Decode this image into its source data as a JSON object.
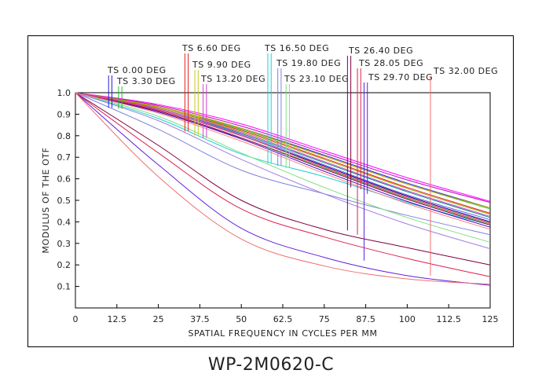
{
  "chart_data": {
    "type": "line",
    "title": "WP-2M0620-C",
    "xlabel": "SPATIAL FREQUENCY IN CYCLES PER MM",
    "ylabel": "MODULUS OF THE OTF",
    "xlim": [
      0,
      125
    ],
    "ylim": [
      0,
      1.0
    ],
    "x_ticks": [
      "0",
      "12.5",
      "25",
      "37.5",
      "50",
      "62.5",
      "75",
      "87.5",
      "100",
      "112.5",
      "125"
    ],
    "y_ticks": [
      "0.1",
      "0.2",
      "0.3",
      "0.4",
      "0.5",
      "0.6",
      "0.7",
      "0.8",
      "0.9",
      "1.0"
    ],
    "grid": false,
    "fields": [
      {
        "label": "TS 0.00 DEG",
        "color": "#2323e0",
        "marks": [
          {
            "x": 10.0,
            "y": 0.93
          },
          {
            "x": 11.0,
            "y": 0.93
          }
        ]
      },
      {
        "label": "TS 3.30 DEG",
        "color": "#20c020",
        "marks": [
          {
            "x": 13.0,
            "y": 0.925
          },
          {
            "x": 14.0,
            "y": 0.925
          }
        ]
      },
      {
        "label": "TS 6.60 DEG",
        "color": "#e02020",
        "marks": [
          {
            "x": 33.0,
            "y": 0.82
          },
          {
            "x": 34.0,
            "y": 0.82
          }
        ]
      },
      {
        "label": "TS 9.90 DEG",
        "color": "#c8c820",
        "marks": [
          {
            "x": 36.0,
            "y": 0.8
          },
          {
            "x": 37.0,
            "y": 0.8
          }
        ]
      },
      {
        "label": "TS 13.20 DEG",
        "color": "#d040d0",
        "marks": [
          {
            "x": 38.5,
            "y": 0.79
          },
          {
            "x": 39.5,
            "y": 0.79
          }
        ]
      },
      {
        "label": "TS 16.50 DEG",
        "color": "#20d0d0",
        "marks": [
          {
            "x": 58.0,
            "y": 0.67
          },
          {
            "x": 59.0,
            "y": 0.67
          }
        ]
      },
      {
        "label": "TS 19.80 DEG",
        "color": "#8080e0",
        "marks": [
          {
            "x": 61.0,
            "y": 0.66
          },
          {
            "x": 62.0,
            "y": 0.66
          }
        ]
      },
      {
        "label": "TS 23.10 DEG",
        "color": "#80e080",
        "marks": [
          {
            "x": 63.5,
            "y": 0.65
          },
          {
            "x": 64.5,
            "y": 0.65
          }
        ]
      },
      {
        "label": "TS 26.40 DEG",
        "color": "#800040",
        "marks": [
          {
            "x": 82.0,
            "y": 0.36
          },
          {
            "x": 83.0,
            "y": 0.56
          }
        ]
      },
      {
        "label": "TS 28.05 DEG",
        "color": "#e02050",
        "marks": [
          {
            "x": 85.0,
            "y": 0.34
          },
          {
            "x": 86.0,
            "y": 0.55
          }
        ]
      },
      {
        "label": "TS 29.70 DEG",
        "color": "#6020e0",
        "marks": [
          {
            "x": 87.0,
            "y": 0.22
          },
          {
            "x": 88.0,
            "y": 0.53
          }
        ]
      },
      {
        "label": "TS 32.00 DEG",
        "color": "#f07070",
        "marks": [
          {
            "x": 107.0,
            "y": 0.15
          }
        ]
      }
    ],
    "series": [
      {
        "name": "TS 0.00 DEG S",
        "color": "#2323e0",
        "values": [
          [
            0,
            1.0
          ],
          [
            25,
            0.935
          ],
          [
            50,
            0.835
          ],
          [
            75,
            0.71
          ],
          [
            100,
            0.58
          ],
          [
            125,
            0.465
          ]
        ]
      },
      {
        "name": "TS 0.00 DEG T",
        "color": "#c000c0",
        "values": [
          [
            0,
            1.0
          ],
          [
            25,
            0.94
          ],
          [
            50,
            0.845
          ],
          [
            75,
            0.72
          ],
          [
            100,
            0.595
          ],
          [
            125,
            0.49
          ]
        ]
      },
      {
        "name": "TS 3.30 DEG S",
        "color": "#20c020",
        "values": [
          [
            0,
            1.0
          ],
          [
            25,
            0.935
          ],
          [
            50,
            0.83
          ],
          [
            75,
            0.705
          ],
          [
            100,
            0.575
          ],
          [
            125,
            0.46
          ]
        ]
      },
      {
        "name": "TS 3.30 DEG T",
        "color": "#ff00ff",
        "values": [
          [
            0,
            1.0
          ],
          [
            25,
            0.945
          ],
          [
            50,
            0.855
          ],
          [
            75,
            0.73
          ],
          [
            100,
            0.605
          ],
          [
            125,
            0.495
          ]
        ]
      },
      {
        "name": "TS 6.60 DEG S",
        "color": "#e02020",
        "values": [
          [
            0,
            1.0
          ],
          [
            25,
            0.93
          ],
          [
            50,
            0.825
          ],
          [
            75,
            0.695
          ],
          [
            100,
            0.56
          ],
          [
            125,
            0.44
          ]
        ]
      },
      {
        "name": "TS 6.60 DEG T",
        "color": "#d0a000",
        "values": [
          [
            0,
            1.0
          ],
          [
            25,
            0.935
          ],
          [
            50,
            0.835
          ],
          [
            75,
            0.705
          ],
          [
            100,
            0.575
          ],
          [
            125,
            0.465
          ]
        ]
      },
      {
        "name": "TS 9.90 DEG S",
        "color": "#a0a000",
        "values": [
          [
            0,
            1.0
          ],
          [
            25,
            0.93
          ],
          [
            50,
            0.82
          ],
          [
            75,
            0.69
          ],
          [
            100,
            0.555
          ],
          [
            125,
            0.435
          ]
        ]
      },
      {
        "name": "TS 9.90 DEG T",
        "color": "#008080",
        "values": [
          [
            0,
            1.0
          ],
          [
            25,
            0.925
          ],
          [
            50,
            0.81
          ],
          [
            75,
            0.675
          ],
          [
            100,
            0.54
          ],
          [
            125,
            0.42
          ]
        ]
      },
      {
        "name": "TS 13.20 DEG S",
        "color": "#d040d0",
        "values": [
          [
            0,
            1.0
          ],
          [
            25,
            0.925
          ],
          [
            50,
            0.815
          ],
          [
            75,
            0.68
          ],
          [
            100,
            0.545
          ],
          [
            125,
            0.425
          ]
        ]
      },
      {
        "name": "TS 13.20 DEG T",
        "color": "#0000a0",
        "values": [
          [
            0,
            1.0
          ],
          [
            25,
            0.92
          ],
          [
            50,
            0.8
          ],
          [
            75,
            0.66
          ],
          [
            100,
            0.52
          ],
          [
            125,
            0.4
          ]
        ]
      },
      {
        "name": "TS 16.50 DEG S",
        "color": "#20d0d0",
        "values": [
          [
            0,
            1.0
          ],
          [
            25,
            0.88
          ],
          [
            50,
            0.715
          ],
          [
            75,
            0.61
          ],
          [
            100,
            0.49
          ],
          [
            125,
            0.385
          ]
        ]
      },
      {
        "name": "TS 16.50 DEG T",
        "color": "#6060e0",
        "values": [
          [
            0,
            1.0
          ],
          [
            25,
            0.92
          ],
          [
            50,
            0.805
          ],
          [
            75,
            0.665
          ],
          [
            100,
            0.525
          ],
          [
            125,
            0.41
          ]
        ]
      },
      {
        "name": "TS 19.80 DEG S",
        "color": "#8080e0",
        "values": [
          [
            0,
            1.0
          ],
          [
            25,
            0.83
          ],
          [
            50,
            0.64
          ],
          [
            75,
            0.53
          ],
          [
            100,
            0.43
          ],
          [
            125,
            0.34
          ]
        ]
      },
      {
        "name": "TS 19.80 DEG T",
        "color": "#40a040",
        "values": [
          [
            0,
            1.0
          ],
          [
            25,
            0.915
          ],
          [
            50,
            0.79
          ],
          [
            75,
            0.65
          ],
          [
            100,
            0.51
          ],
          [
            125,
            0.39
          ]
        ]
      },
      {
        "name": "TS 23.10 DEG S",
        "color": "#80e080",
        "values": [
          [
            0,
            1.0
          ],
          [
            25,
            0.89
          ],
          [
            50,
            0.72
          ],
          [
            75,
            0.56
          ],
          [
            100,
            0.42
          ],
          [
            125,
            0.305
          ]
        ]
      },
      {
        "name": "TS 23.10 DEG T",
        "color": "#a080e0",
        "values": [
          [
            0,
            1.0
          ],
          [
            25,
            0.87
          ],
          [
            50,
            0.69
          ],
          [
            75,
            0.53
          ],
          [
            100,
            0.39
          ],
          [
            125,
            0.275
          ]
        ]
      },
      {
        "name": "TS 26.40 DEG S",
        "color": "#800040",
        "values": [
          [
            0,
            1.0
          ],
          [
            25,
            0.755
          ],
          [
            50,
            0.5
          ],
          [
            75,
            0.365
          ],
          [
            100,
            0.28
          ],
          [
            125,
            0.2
          ]
        ]
      },
      {
        "name": "TS 26.40 DEG T",
        "color": "#a00050",
        "values": [
          [
            0,
            1.0
          ],
          [
            25,
            0.915
          ],
          [
            50,
            0.79
          ],
          [
            75,
            0.645
          ],
          [
            100,
            0.505
          ],
          [
            125,
            0.385
          ]
        ]
      },
      {
        "name": "TS 28.05 DEG S",
        "color": "#e02050",
        "values": [
          [
            0,
            1.0
          ],
          [
            25,
            0.72
          ],
          [
            50,
            0.46
          ],
          [
            75,
            0.33
          ],
          [
            100,
            0.23
          ],
          [
            125,
            0.145
          ]
        ]
      },
      {
        "name": "TS 28.05 DEG T",
        "color": "#ff4060",
        "values": [
          [
            0,
            1.0
          ],
          [
            25,
            0.92
          ],
          [
            50,
            0.8
          ],
          [
            75,
            0.655
          ],
          [
            100,
            0.515
          ],
          [
            125,
            0.395
          ]
        ]
      },
      {
        "name": "TS 29.70 DEG S",
        "color": "#6020e0",
        "values": [
          [
            0,
            1.0
          ],
          [
            25,
            0.665
          ],
          [
            50,
            0.37
          ],
          [
            75,
            0.235
          ],
          [
            100,
            0.15
          ],
          [
            125,
            0.105
          ]
        ]
      },
      {
        "name": "TS 29.70 DEG T",
        "color": "#4000c0",
        "values": [
          [
            0,
            1.0
          ],
          [
            25,
            0.91
          ],
          [
            50,
            0.785
          ],
          [
            75,
            0.635
          ],
          [
            100,
            0.495
          ],
          [
            125,
            0.375
          ]
        ]
      },
      {
        "name": "TS 32.00 DEG S",
        "color": "#f07070",
        "values": [
          [
            0,
            1.0
          ],
          [
            25,
            0.61
          ],
          [
            50,
            0.32
          ],
          [
            75,
            0.195
          ],
          [
            100,
            0.135
          ],
          [
            125,
            0.11
          ]
        ]
      },
      {
        "name": "TS 32.00 DEG T",
        "color": "#ff8080",
        "values": [
          [
            0,
            1.0
          ],
          [
            25,
            0.905
          ],
          [
            50,
            0.775
          ],
          [
            75,
            0.625
          ],
          [
            100,
            0.485
          ],
          [
            125,
            0.365
          ]
        ]
      }
    ]
  }
}
